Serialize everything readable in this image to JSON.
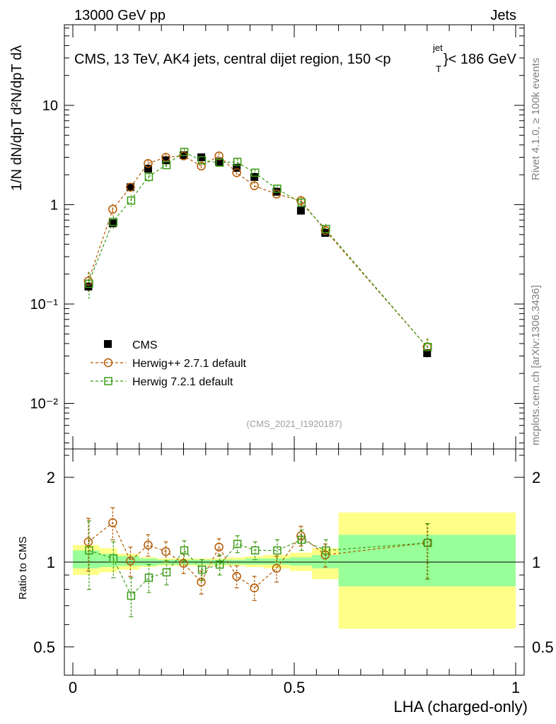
{
  "header": {
    "left": "13000 GeV pp",
    "right": "Jets",
    "title": "CMS, 13 TeV, AK4 jets, central dijet region, 150 <p",
    "title_sub": "T",
    "title_sup": "jet",
    "title_end": "}< 186 GeV",
    "watermark": "(CMS_2021_I1920187)",
    "side_top": "Rivet 4.1.0, ≥ 100k events",
    "side_bottom": "mcplots.cern.ch [arXiv:1306.3436]"
  },
  "axes": {
    "ylabel_top": "1/N dN/dpT d²N/dpT dλ",
    "ylabel_bottom": "Ratio to CMS",
    "xlabel": "LHA (charged-only)",
    "x_ticks": [
      "0",
      "0.5",
      "1"
    ],
    "y_ticks_top": [
      "10⁻²",
      "10⁻¹",
      "1",
      "10"
    ],
    "y_ticks_bottom": [
      "0.5",
      "1",
      "2"
    ]
  },
  "legend": [
    {
      "label": "CMS"
    },
    {
      "label": "Herwig++ 2.7.1 default"
    },
    {
      "label": "Herwig 7.2.1 default"
    }
  ],
  "colors": {
    "cms": "#000000",
    "herwigpp": "#b35900",
    "herwig7": "#3c9b16",
    "band_inner": "#99ff99",
    "band_outer": "#ffff88"
  },
  "chart_data": [
    {
      "type": "scatter",
      "title": "CMS, 13 TeV, AK4 jets, central dijet region, 150 < pT jet < 186 GeV",
      "xlabel": "LHA (charged-only)",
      "ylabel": "1/N dN/dpT d²N/dpT dλ",
      "yscale": "log",
      "xlim": [
        0,
        1
      ],
      "ylim": [
        0.003,
        60
      ],
      "x": [
        0.035,
        0.09,
        0.13,
        0.17,
        0.21,
        0.25,
        0.29,
        0.33,
        0.37,
        0.41,
        0.46,
        0.515,
        0.57,
        0.8
      ],
      "series": [
        {
          "name": "CMS",
          "values": [
            0.15,
            0.65,
            1.5,
            2.3,
            2.8,
            3.15,
            3.0,
            2.7,
            2.35,
            1.9,
            1.35,
            0.87,
            0.52,
            0.032
          ]
        },
        {
          "name": "Herwig++ 2.7.1 default",
          "values": [
            0.17,
            0.9,
            1.5,
            2.6,
            3.0,
            3.1,
            2.45,
            3.1,
            2.1,
            1.55,
            1.28,
            1.1,
            0.55,
            0.037
          ],
          "errors": [
            0.04,
            0.12,
            0.15,
            0.2,
            0.22,
            0.22,
            0.2,
            0.22,
            0.18,
            0.15,
            0.12,
            0.12,
            0.07,
            0.008
          ]
        },
        {
          "name": "Herwig 7.2.1 default",
          "values": [
            0.16,
            0.67,
            1.1,
            1.9,
            2.5,
            3.4,
            2.8,
            2.65,
            2.7,
            2.1,
            1.45,
            1.05,
            0.57,
            0.037
          ],
          "errors": [
            0.05,
            0.1,
            0.15,
            0.2,
            0.22,
            0.25,
            0.22,
            0.2,
            0.2,
            0.18,
            0.13,
            0.12,
            0.07,
            0.008
          ]
        }
      ]
    },
    {
      "type": "scatter",
      "xlabel": "LHA (charged-only)",
      "ylabel": "Ratio to CMS",
      "yscale": "log",
      "xlim": [
        0,
        1
      ],
      "ylim": [
        0.4,
        2.4
      ],
      "reference": 1,
      "x": [
        0.035,
        0.09,
        0.13,
        0.17,
        0.21,
        0.25,
        0.29,
        0.33,
        0.37,
        0.41,
        0.46,
        0.515,
        0.57,
        0.8
      ],
      "series": [
        {
          "name": "Herwig++ 2.7.1 default",
          "values": [
            1.18,
            1.38,
            1.01,
            1.15,
            1.09,
            0.99,
            0.85,
            1.13,
            0.89,
            0.81,
            0.95,
            1.24,
            1.06,
            1.17
          ],
          "err_up": [
            0.25,
            0.18,
            0.12,
            0.1,
            0.09,
            0.08,
            0.08,
            0.08,
            0.08,
            0.08,
            0.1,
            0.1,
            0.1,
            0.2
          ],
          "err_down": [
            0.25,
            0.18,
            0.12,
            0.1,
            0.09,
            0.08,
            0.08,
            0.08,
            0.08,
            0.08,
            0.1,
            0.1,
            0.1,
            0.3
          ]
        },
        {
          "name": "Herwig 7.2.1 default",
          "values": [
            1.1,
            1.03,
            0.76,
            0.88,
            0.92,
            1.1,
            0.94,
            0.98,
            1.16,
            1.1,
            1.1,
            1.2,
            1.1,
            1.17
          ],
          "err_up": [
            0.3,
            0.15,
            0.12,
            0.1,
            0.09,
            0.09,
            0.08,
            0.08,
            0.08,
            0.08,
            0.1,
            0.1,
            0.1,
            0.2
          ],
          "err_down": [
            0.3,
            0.15,
            0.12,
            0.1,
            0.09,
            0.09,
            0.08,
            0.08,
            0.08,
            0.08,
            0.1,
            0.1,
            0.1,
            0.3
          ]
        }
      ],
      "bands": [
        {
          "x0": 0.0,
          "x1": 0.06,
          "inner": [
            0.95,
            1.1
          ],
          "outer": [
            0.9,
            1.15
          ]
        },
        {
          "x0": 0.06,
          "x1": 0.1,
          "inner": [
            0.96,
            1.07
          ],
          "outer": [
            0.92,
            1.12
          ]
        },
        {
          "x0": 0.1,
          "x1": 0.15,
          "inner": [
            0.97,
            1.05
          ],
          "outer": [
            0.94,
            1.07
          ]
        },
        {
          "x0": 0.15,
          "x1": 0.19,
          "inner": [
            0.97,
            1.03
          ],
          "outer": [
            0.96,
            1.04
          ]
        },
        {
          "x0": 0.19,
          "x1": 0.23,
          "inner": [
            0.98,
            1.02
          ],
          "outer": [
            0.97,
            1.03
          ]
        },
        {
          "x0": 0.23,
          "x1": 0.27,
          "inner": [
            0.98,
            1.02
          ],
          "outer": [
            0.97,
            1.03
          ]
        },
        {
          "x0": 0.27,
          "x1": 0.31,
          "inner": [
            0.98,
            1.02
          ],
          "outer": [
            0.97,
            1.03
          ]
        },
        {
          "x0": 0.31,
          "x1": 0.35,
          "inner": [
            0.98,
            1.02
          ],
          "outer": [
            0.97,
            1.03
          ]
        },
        {
          "x0": 0.35,
          "x1": 0.39,
          "inner": [
            0.98,
            1.02
          ],
          "outer": [
            0.97,
            1.04
          ]
        },
        {
          "x0": 0.39,
          "x1": 0.43,
          "inner": [
            0.98,
            1.03
          ],
          "outer": [
            0.96,
            1.05
          ]
        },
        {
          "x0": 0.43,
          "x1": 0.49,
          "inner": [
            0.98,
            1.03
          ],
          "outer": [
            0.95,
            1.06
          ]
        },
        {
          "x0": 0.49,
          "x1": 0.54,
          "inner": [
            0.97,
            1.04
          ],
          "outer": [
            0.93,
            1.08
          ]
        },
        {
          "x0": 0.54,
          "x1": 0.6,
          "inner": [
            0.95,
            1.06
          ],
          "outer": [
            0.87,
            1.12
          ]
        },
        {
          "x0": 0.6,
          "x1": 1.0,
          "inner": [
            0.82,
            1.25
          ],
          "outer": [
            0.58,
            1.5
          ]
        }
      ]
    }
  ]
}
